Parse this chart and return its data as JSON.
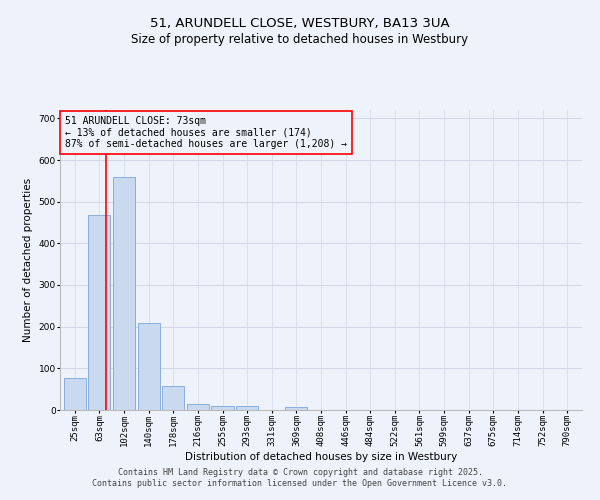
{
  "title": "51, ARUNDELL CLOSE, WESTBURY, BA13 3UA",
  "subtitle": "Size of property relative to detached houses in Westbury",
  "xlabel": "Distribution of detached houses by size in Westbury",
  "ylabel": "Number of detached properties",
  "categories": [
    "25sqm",
    "63sqm",
    "102sqm",
    "140sqm",
    "178sqm",
    "216sqm",
    "255sqm",
    "293sqm",
    "331sqm",
    "369sqm",
    "408sqm",
    "446sqm",
    "484sqm",
    "522sqm",
    "561sqm",
    "599sqm",
    "637sqm",
    "675sqm",
    "714sqm",
    "752sqm",
    "790sqm"
  ],
  "values": [
    78,
    467,
    560,
    208,
    57,
    15,
    10,
    9,
    0,
    7,
    0,
    0,
    0,
    0,
    0,
    0,
    0,
    0,
    0,
    0,
    0
  ],
  "bar_color": "#c9d9f0",
  "bar_edgecolor": "#7aa8d8",
  "grid_color": "#d0d8e8",
  "background_color": "#eef2fb",
  "ylim": [
    0,
    720
  ],
  "yticks": [
    0,
    100,
    200,
    300,
    400,
    500,
    600,
    700
  ],
  "annotation_text": "51 ARUNDELL CLOSE: 73sqm\n← 13% of detached houses are smaller (174)\n87% of semi-detached houses are larger (1,208) →",
  "footer_line1": "Contains HM Land Registry data © Crown copyright and database right 2025.",
  "footer_line2": "Contains public sector information licensed under the Open Government Licence v3.0.",
  "title_fontsize": 9.5,
  "subtitle_fontsize": 8.5,
  "axis_label_fontsize": 7.5,
  "tick_fontsize": 6.5,
  "annotation_fontsize": 7,
  "footer_fontsize": 6
}
